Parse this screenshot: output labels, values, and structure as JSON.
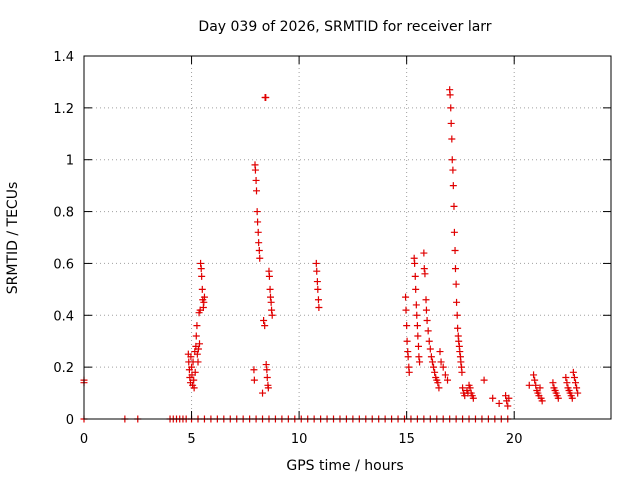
{
  "chart_data": {
    "type": "scatter",
    "title": "Day 039 of 2026, SRMTID for receiver larr",
    "xlabel": "GPS time / hours",
    "ylabel": "SRMTID / TECUs",
    "xlim": [
      0,
      24.5
    ],
    "ylim": [
      0,
      1.4
    ],
    "xticks": [
      0,
      5,
      10,
      15,
      20
    ],
    "xtick_labels": [
      "0",
      "5",
      "10",
      "15",
      "20"
    ],
    "yticks": [
      0,
      0.2,
      0.4,
      0.6,
      0.8,
      1.0,
      1.2,
      1.4
    ],
    "ytick_labels": [
      "0",
      "0.2",
      "0.4",
      "0.6",
      "0.8",
      "1",
      "1.2",
      "1.4"
    ],
    "grid": true,
    "marker": "+",
    "color": "#e00000",
    "series": [
      {
        "name": "SRMTID",
        "points": [
          [
            0.0,
            0.15
          ],
          [
            0.0,
            0.14
          ],
          [
            0.0,
            0.0
          ],
          [
            1.9,
            0.0
          ],
          [
            2.5,
            0.0
          ],
          [
            4.0,
            0.0
          ],
          [
            4.15,
            0.0
          ],
          [
            4.3,
            0.0
          ],
          [
            4.45,
            0.0
          ],
          [
            4.6,
            0.0
          ],
          [
            4.75,
            0.0
          ],
          [
            4.85,
            0.25
          ],
          [
            4.87,
            0.22
          ],
          [
            4.9,
            0.19
          ],
          [
            4.92,
            0.16
          ],
          [
            4.95,
            0.14
          ],
          [
            4.97,
            0.24
          ],
          [
            5.0,
            0.2
          ],
          [
            5.02,
            0.17
          ],
          [
            5.05,
            0.13
          ],
          [
            5.07,
            0.22
          ],
          [
            5.1,
            0.15
          ],
          [
            5.12,
            0.12
          ],
          [
            5.15,
            0.26
          ],
          [
            5.17,
            0.18
          ],
          [
            5.2,
            0.28
          ],
          [
            5.22,
            0.32
          ],
          [
            5.25,
            0.36
          ],
          [
            5.27,
            0.25
          ],
          [
            5.3,
            0.22
          ],
          [
            5.32,
            0.27
          ],
          [
            5.35,
            0.41
          ],
          [
            5.37,
            0.29
          ],
          [
            5.4,
            0.42
          ],
          [
            5.42,
            0.6
          ],
          [
            5.45,
            0.58
          ],
          [
            5.47,
            0.55
          ],
          [
            5.5,
            0.5
          ],
          [
            5.52,
            0.46
          ],
          [
            5.55,
            0.43
          ],
          [
            5.57,
            0.45
          ],
          [
            5.6,
            0.47
          ],
          [
            5.0,
            0.0
          ],
          [
            5.3,
            0.0
          ],
          [
            5.6,
            0.0
          ],
          [
            5.9,
            0.0
          ],
          [
            6.2,
            0.0
          ],
          [
            6.5,
            0.0
          ],
          [
            6.8,
            0.0
          ],
          [
            7.1,
            0.0
          ],
          [
            7.4,
            0.0
          ],
          [
            7.7,
            0.0
          ],
          [
            7.9,
            0.19
          ],
          [
            7.92,
            0.15
          ],
          [
            7.95,
            0.98
          ],
          [
            7.97,
            0.96
          ],
          [
            8.0,
            0.92
          ],
          [
            8.02,
            0.88
          ],
          [
            8.05,
            0.8
          ],
          [
            8.07,
            0.76
          ],
          [
            8.1,
            0.72
          ],
          [
            8.12,
            0.68
          ],
          [
            8.15,
            0.65
          ],
          [
            8.17,
            0.62
          ],
          [
            8.3,
            0.1
          ],
          [
            8.35,
            0.38
          ],
          [
            8.4,
            0.36
          ],
          [
            8.42,
            1.24
          ],
          [
            8.45,
            1.24
          ],
          [
            8.47,
            0.21
          ],
          [
            8.5,
            0.19
          ],
          [
            8.52,
            0.16
          ],
          [
            8.55,
            0.13
          ],
          [
            8.57,
            0.12
          ],
          [
            8.6,
            0.57
          ],
          [
            8.62,
            0.55
          ],
          [
            8.65,
            0.5
          ],
          [
            8.67,
            0.47
          ],
          [
            8.7,
            0.45
          ],
          [
            8.72,
            0.42
          ],
          [
            8.75,
            0.4
          ],
          [
            8.0,
            0.0
          ],
          [
            8.3,
            0.0
          ],
          [
            8.6,
            0.0
          ],
          [
            8.9,
            0.0
          ],
          [
            9.2,
            0.0
          ],
          [
            9.5,
            0.0
          ],
          [
            9.8,
            0.0
          ],
          [
            10.1,
            0.0
          ],
          [
            10.4,
            0.0
          ],
          [
            10.7,
            0.0
          ],
          [
            10.8,
            0.6
          ],
          [
            10.82,
            0.57
          ],
          [
            10.85,
            0.53
          ],
          [
            10.87,
            0.5
          ],
          [
            10.9,
            0.46
          ],
          [
            10.92,
            0.43
          ],
          [
            11.0,
            0.0
          ],
          [
            11.3,
            0.0
          ],
          [
            11.6,
            0.0
          ],
          [
            11.9,
            0.0
          ],
          [
            12.2,
            0.0
          ],
          [
            12.5,
            0.0
          ],
          [
            12.8,
            0.0
          ],
          [
            13.1,
            0.0
          ],
          [
            13.4,
            0.0
          ],
          [
            13.7,
            0.0
          ],
          [
            14.0,
            0.0
          ],
          [
            14.3,
            0.0
          ],
          [
            14.6,
            0.0
          ],
          [
            14.9,
            0.0
          ],
          [
            14.95,
            0.47
          ],
          [
            14.97,
            0.42
          ],
          [
            15.0,
            0.36
          ],
          [
            15.02,
            0.3
          ],
          [
            15.05,
            0.26
          ],
          [
            15.07,
            0.24
          ],
          [
            15.1,
            0.2
          ],
          [
            15.12,
            0.18
          ],
          [
            15.35,
            0.62
          ],
          [
            15.37,
            0.6
          ],
          [
            15.4,
            0.55
          ],
          [
            15.42,
            0.5
          ],
          [
            15.45,
            0.44
          ],
          [
            15.47,
            0.4
          ],
          [
            15.5,
            0.36
          ],
          [
            15.52,
            0.32
          ],
          [
            15.55,
            0.28
          ],
          [
            15.57,
            0.24
          ],
          [
            15.6,
            0.22
          ],
          [
            15.8,
            0.64
          ],
          [
            15.82,
            0.58
          ],
          [
            15.85,
            0.56
          ],
          [
            15.9,
            0.46
          ],
          [
            15.92,
            0.42
          ],
          [
            15.95,
            0.38
          ],
          [
            16.0,
            0.34
          ],
          [
            16.05,
            0.3
          ],
          [
            16.1,
            0.27
          ],
          [
            16.15,
            0.24
          ],
          [
            16.2,
            0.22
          ],
          [
            16.25,
            0.2
          ],
          [
            16.3,
            0.18
          ],
          [
            16.35,
            0.16
          ],
          [
            16.4,
            0.15
          ],
          [
            16.45,
            0.14
          ],
          [
            16.5,
            0.12
          ],
          [
            16.55,
            0.26
          ],
          [
            16.6,
            0.22
          ],
          [
            16.7,
            0.2
          ],
          [
            16.8,
            0.17
          ],
          [
            16.9,
            0.15
          ],
          [
            17.0,
            1.27
          ],
          [
            17.02,
            1.25
          ],
          [
            17.05,
            1.2
          ],
          [
            17.07,
            1.14
          ],
          [
            17.1,
            1.08
          ],
          [
            17.12,
            1.0
          ],
          [
            17.15,
            0.96
          ],
          [
            17.17,
            0.9
          ],
          [
            17.2,
            0.82
          ],
          [
            17.22,
            0.72
          ],
          [
            17.25,
            0.65
          ],
          [
            17.27,
            0.58
          ],
          [
            17.3,
            0.52
          ],
          [
            17.32,
            0.45
          ],
          [
            17.35,
            0.4
          ],
          [
            17.37,
            0.35
          ],
          [
            17.4,
            0.32
          ],
          [
            17.42,
            0.3
          ],
          [
            17.45,
            0.28
          ],
          [
            17.47,
            0.26
          ],
          [
            17.5,
            0.24
          ],
          [
            17.52,
            0.22
          ],
          [
            17.55,
            0.2
          ],
          [
            17.57,
            0.18
          ],
          [
            17.6,
            0.12
          ],
          [
            17.65,
            0.1
          ],
          [
            17.7,
            0.09
          ],
          [
            17.8,
            0.11
          ],
          [
            17.85,
            0.1
          ],
          [
            17.9,
            0.13
          ],
          [
            17.95,
            0.12
          ],
          [
            18.0,
            0.1
          ],
          [
            18.05,
            0.09
          ],
          [
            18.1,
            0.08
          ],
          [
            18.6,
            0.15
          ],
          [
            19.0,
            0.08
          ],
          [
            19.3,
            0.06
          ],
          [
            19.6,
            0.09
          ],
          [
            19.65,
            0.07
          ],
          [
            19.7,
            0.05
          ],
          [
            19.75,
            0.08
          ],
          [
            15.2,
            0.0
          ],
          [
            15.5,
            0.0
          ],
          [
            15.8,
            0.0
          ],
          [
            16.1,
            0.0
          ],
          [
            16.4,
            0.0
          ],
          [
            16.7,
            0.0
          ],
          [
            17.0,
            0.0
          ],
          [
            17.3,
            0.0
          ],
          [
            17.6,
            0.0
          ],
          [
            17.9,
            0.0
          ],
          [
            18.2,
            0.0
          ],
          [
            18.5,
            0.0
          ],
          [
            18.8,
            0.0
          ],
          [
            19.1,
            0.0
          ],
          [
            19.4,
            0.0
          ],
          [
            19.7,
            0.0
          ],
          [
            20.7,
            0.13
          ],
          [
            20.9,
            0.17
          ],
          [
            20.95,
            0.15
          ],
          [
            21.0,
            0.13
          ],
          [
            21.05,
            0.11
          ],
          [
            21.1,
            0.1
          ],
          [
            21.15,
            0.09
          ],
          [
            21.2,
            0.12
          ],
          [
            21.25,
            0.08
          ],
          [
            21.3,
            0.07
          ],
          [
            21.8,
            0.14
          ],
          [
            21.85,
            0.12
          ],
          [
            21.9,
            0.11
          ],
          [
            21.95,
            0.1
          ],
          [
            22.0,
            0.09
          ],
          [
            22.05,
            0.08
          ],
          [
            22.4,
            0.16
          ],
          [
            22.45,
            0.14
          ],
          [
            22.5,
            0.12
          ],
          [
            22.55,
            0.11
          ],
          [
            22.6,
            0.1
          ],
          [
            22.65,
            0.09
          ],
          [
            22.7,
            0.08
          ],
          [
            22.75,
            0.18
          ],
          [
            22.8,
            0.16
          ],
          [
            22.85,
            0.14
          ],
          [
            22.9,
            0.12
          ],
          [
            22.95,
            0.1
          ]
        ]
      }
    ]
  }
}
